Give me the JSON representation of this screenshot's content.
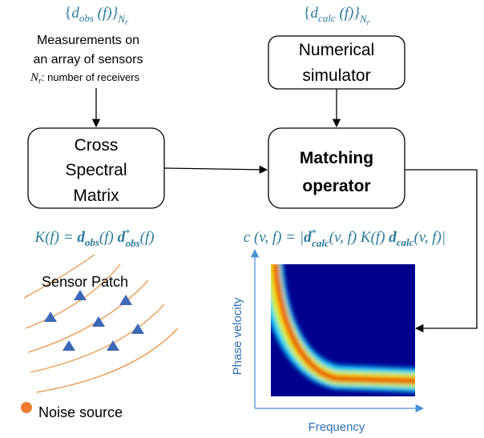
{
  "observed": {
    "formula": [
      "{",
      "d",
      "obs",
      " (f)}",
      "N",
      "r"
    ],
    "description": [
      "Measurements on",
      "an array of sensors"
    ],
    "note": [
      "N",
      "r",
      ": number of receivers"
    ]
  },
  "calculated": {
    "formula": [
      "{",
      "d",
      "calc",
      " (f)}",
      "N",
      "r"
    ]
  },
  "nodes": [
    {
      "label": [
        "Cross",
        "Spectral",
        "Matrix"
      ]
    },
    {
      "label": [
        "Numerical",
        "simulator"
      ]
    },
    {
      "label": [
        "Matching",
        "operator"
      ]
    }
  ],
  "csm_formula": [
    "K(f) = ",
    "d",
    "obs",
    "(f) ",
    "d",
    "*",
    "obs",
    "(f)"
  ],
  "matching_formula": [
    "c (v, f) = |",
    "d",
    "*",
    "calc",
    "(v, f) K(f) ",
    "d",
    "calc",
    "(v, f)|"
  ],
  "sensor_patch": "Sensor Patch",
  "noise_source": "Noise source",
  "plot": {
    "y_label": "Phase velocity",
    "x_label": "Frequency"
  }
}
